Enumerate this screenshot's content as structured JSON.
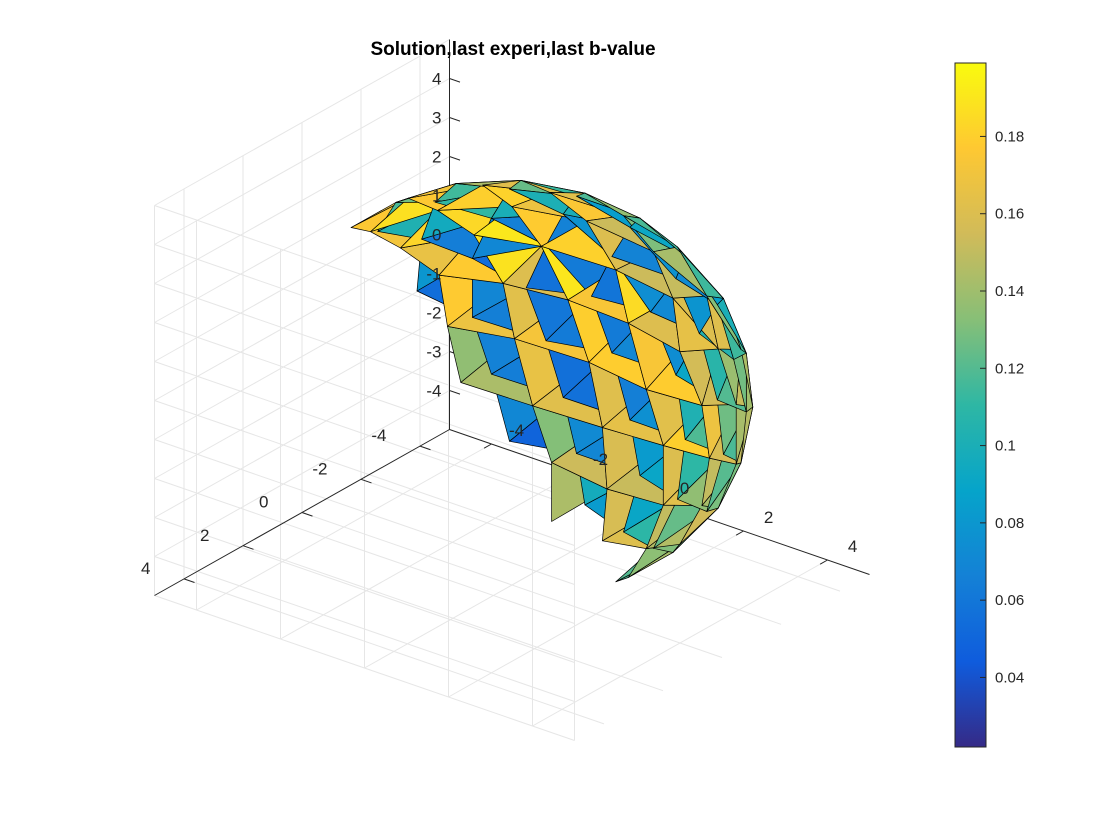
{
  "chart_data": {
    "type": "surface",
    "title": "Solution,last experi,last b-value",
    "surface": {
      "shape": "triangulated sphere",
      "center": [
        0,
        0,
        0
      ],
      "radius": 4.7,
      "edge_color": "#000000",
      "colormap": "parula"
    },
    "axes": {
      "x": {
        "ticks": [
          -4,
          -2,
          0,
          2,
          4
        ],
        "lim": [
          -5,
          5
        ]
      },
      "y": {
        "ticks": [
          -4,
          -2,
          0,
          2,
          4
        ],
        "lim": [
          -5,
          5
        ]
      },
      "z": {
        "ticks": [
          -4,
          -3,
          -2,
          -1,
          0,
          1,
          2,
          3,
          4
        ],
        "lim": [
          -5,
          5
        ]
      }
    },
    "view": {
      "azimuth": -37.5,
      "elevation": 30
    },
    "grid": true,
    "box": false,
    "colorbar": {
      "location": "right",
      "range": [
        0.022,
        0.199
      ],
      "ticks": [
        0.04,
        0.06,
        0.08,
        0.1,
        0.12,
        0.14,
        0.16,
        0.18
      ],
      "tick_labels": [
        "0.04",
        "0.06",
        "0.08",
        "0.1",
        "0.12",
        "0.14",
        "0.16",
        "0.18"
      ],
      "colors": [
        "#352a87",
        "#0f5cdd",
        "#1481d6",
        "#06a4ca",
        "#2eb7a4",
        "#87bf77",
        "#d1bb59",
        "#fec832",
        "#f9fb0e"
      ]
    },
    "value_field": {
      "description": "value per facet, approximate",
      "mean": 0.145,
      "samples": [
        {
          "direction": "left-lower",
          "value": 0.03
        },
        {
          "direction": "left",
          "value": 0.07
        },
        {
          "direction": "top",
          "value": 0.185
        },
        {
          "direction": "front-right",
          "value": 0.185
        },
        {
          "direction": "front",
          "value": 0.15
        },
        {
          "direction": "bottom",
          "value": 0.1
        },
        {
          "direction": "right-back",
          "value": 0.06
        }
      ]
    }
  }
}
